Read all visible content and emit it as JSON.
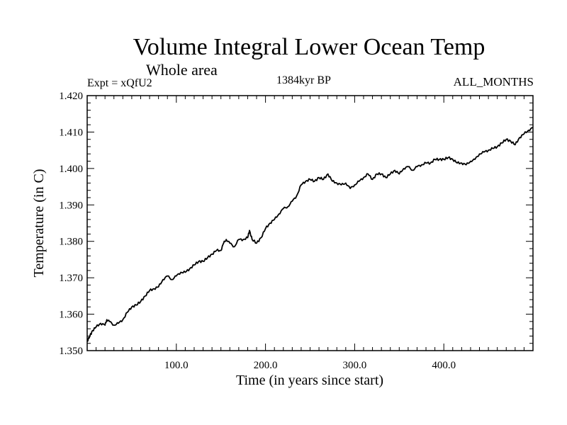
{
  "header": {
    "title": "Volume Integral Lower Ocean Temp",
    "subtitle": "Whole area",
    "expt": "Expt = xQfU2",
    "period": "1384kyr BP",
    "months": "ALL_MONTHS"
  },
  "colors": {
    "line": "#000000",
    "background": "#ffffff"
  },
  "chart_data": {
    "type": "line",
    "title": "Volume Integral Lower Ocean Temp",
    "subtitle": "Whole area",
    "xlabel": "Time (in years since start)",
    "ylabel": "Temperature (in C)",
    "xlim": [
      0,
      500
    ],
    "ylim": [
      1.35,
      1.42
    ],
    "grid": false,
    "x_ticks": [
      100,
      200,
      300,
      400
    ],
    "x_tick_labels": [
      "100.0",
      "200.0",
      "300.0",
      "400.0"
    ],
    "y_ticks": [
      1.35,
      1.36,
      1.37,
      1.38,
      1.39,
      1.4,
      1.41,
      1.42
    ],
    "y_tick_labels": [
      "1.350",
      "1.360",
      "1.370",
      "1.380",
      "1.390",
      "1.400",
      "1.410",
      "1.420"
    ],
    "series": [
      {
        "name": "Volume Integral Lower Ocean Temp",
        "x": [
          0,
          3,
          6,
          10,
          15,
          20,
          22,
          25,
          30,
          35,
          40,
          45,
          50,
          55,
          60,
          65,
          70,
          75,
          80,
          85,
          90,
          95,
          100,
          105,
          110,
          115,
          120,
          125,
          130,
          135,
          140,
          145,
          150,
          153,
          156,
          160,
          165,
          170,
          175,
          180,
          182,
          185,
          190,
          195,
          200,
          205,
          210,
          215,
          220,
          225,
          230,
          235,
          240,
          245,
          250,
          255,
          260,
          265,
          270,
          275,
          280,
          285,
          290,
          295,
          300,
          305,
          310,
          315,
          320,
          325,
          330,
          335,
          340,
          345,
          350,
          355,
          360,
          365,
          370,
          375,
          380,
          385,
          390,
          395,
          400,
          405,
          410,
          415,
          420,
          425,
          430,
          435,
          440,
          445,
          450,
          455,
          460,
          465,
          470,
          475,
          480,
          485,
          490,
          495,
          500
        ],
        "y": [
          1.3525,
          1.354,
          1.3555,
          1.3565,
          1.3575,
          1.357,
          1.3585,
          1.358,
          1.357,
          1.3575,
          1.3585,
          1.3605,
          1.362,
          1.3625,
          1.3635,
          1.365,
          1.3665,
          1.367,
          1.3675,
          1.3695,
          1.3705,
          1.3695,
          1.3705,
          1.3715,
          1.3715,
          1.3725,
          1.3735,
          1.3745,
          1.3745,
          1.3755,
          1.3765,
          1.3775,
          1.3775,
          1.3795,
          1.3805,
          1.3795,
          1.3785,
          1.3805,
          1.3805,
          1.381,
          1.383,
          1.3805,
          1.3795,
          1.381,
          1.3835,
          1.385,
          1.386,
          1.3875,
          1.389,
          1.3895,
          1.391,
          1.3925,
          1.3955,
          1.3965,
          1.397,
          1.3965,
          1.3975,
          1.397,
          1.3985,
          1.3965,
          1.396,
          1.3955,
          1.396,
          1.3945,
          1.3955,
          1.3965,
          1.3975,
          1.3985,
          1.397,
          1.3985,
          1.3985,
          1.3975,
          1.3985,
          1.3995,
          1.3985,
          1.4,
          1.4005,
          1.3995,
          1.4005,
          1.401,
          1.4015,
          1.4015,
          1.4025,
          1.4025,
          1.4025,
          1.403,
          1.4025,
          1.4015,
          1.4015,
          1.401,
          1.402,
          1.4025,
          1.404,
          1.4045,
          1.405,
          1.4055,
          1.406,
          1.407,
          1.408,
          1.4075,
          1.4065,
          1.4085,
          1.4095,
          1.4105,
          1.4112
        ]
      }
    ]
  }
}
